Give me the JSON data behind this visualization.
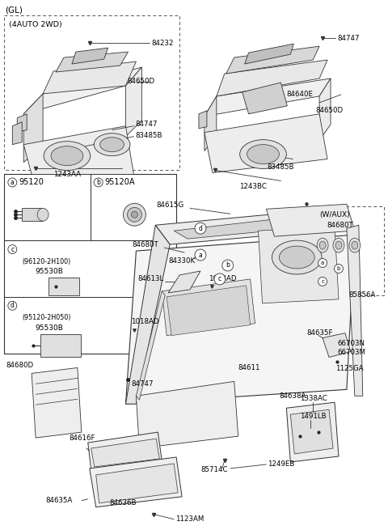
{
  "bg_color": "#ffffff",
  "line_color": "#333333",
  "fig_width": 4.8,
  "fig_height": 6.55,
  "dpi": 100,
  "title": "(GL)",
  "box1_label": "(4AUTO 2WD)",
  "parts_labels": {
    "top_left": [
      "84232",
      "84650D",
      "84747",
      "83485B",
      "1243AA"
    ],
    "top_right": [
      "84747",
      "84640E",
      "84650D",
      "83485B",
      "1243BC"
    ],
    "ab_row": [
      "95120",
      "95120A"
    ],
    "c_row": [
      "(96120-2H100)",
      "95530B"
    ],
    "d_row": [
      "(95120-2H050)",
      "95530B"
    ],
    "main": [
      "84615G",
      "84680T",
      "84330K",
      "84613L",
      "1018AD",
      "84611",
      "84747",
      "84680D",
      "84616F",
      "84636B",
      "84635A",
      "1123AM",
      "85714C",
      "1249EB",
      "1491LB",
      "1338AC",
      "84638A",
      "1125GA",
      "84635F",
      "66703N",
      "66703M",
      "85856A",
      "84680T"
    ]
  }
}
